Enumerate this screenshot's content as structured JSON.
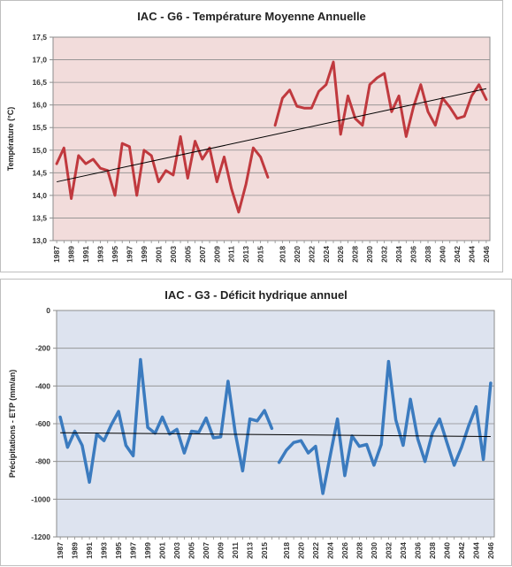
{
  "chart_data": [
    {
      "type": "line",
      "title": "IAC - G6 - Température Moyenne Annuelle",
      "xlabel": "",
      "ylabel": "Température (°C)",
      "ylim": [
        13.0,
        17.5
      ],
      "yticks": [
        "13,0",
        "13,5",
        "14,0",
        "14,5",
        "15,0",
        "15,5",
        "16,0",
        "16,5",
        "17,0",
        "17,5"
      ],
      "xticks": [
        "1987",
        "1989",
        "1991",
        "1993",
        "1995",
        "1997",
        "1999",
        "2001",
        "2003",
        "2005",
        "2007",
        "2009",
        "2011",
        "2013",
        "2015",
        "2018",
        "2020",
        "2022",
        "2024",
        "2026",
        "2028",
        "2030",
        "2032",
        "2034",
        "2036",
        "2038",
        "2040",
        "2042",
        "2044",
        "2046"
      ],
      "plot_background": "#f2dcdb",
      "grid": true,
      "legend": "none",
      "series": [
        {
          "color": "#c0393e",
          "x": [
            1987,
            1988,
            1989,
            1990,
            1991,
            1992,
            1993,
            1994,
            1995,
            1996,
            1997,
            1998,
            1999,
            2000,
            2001,
            2002,
            2003,
            2004,
            2005,
            2006,
            2007,
            2008,
            2009,
            2010,
            2011,
            2012,
            2013,
            2014,
            2015,
            2016
          ],
          "values": [
            14.7,
            15.05,
            13.93,
            14.88,
            14.7,
            14.8,
            14.6,
            14.55,
            14.0,
            15.15,
            15.08,
            14.0,
            15.0,
            14.88,
            14.3,
            14.55,
            14.45,
            15.3,
            14.38,
            15.2,
            14.8,
            15.05,
            14.3,
            14.85,
            14.15,
            13.63,
            14.25,
            15.05,
            14.85,
            14.4
          ]
        },
        {
          "color": "#c0393e",
          "x": [
            2017,
            2018,
            2019,
            2020,
            2021,
            2022,
            2023,
            2024,
            2025,
            2026,
            2027,
            2028,
            2029,
            2030,
            2031,
            2032,
            2033,
            2034,
            2035,
            2036,
            2037,
            2038,
            2039,
            2040,
            2041,
            2042,
            2043,
            2044,
            2045,
            2046
          ],
          "values": [
            15.55,
            16.15,
            16.33,
            15.97,
            15.93,
            15.93,
            16.3,
            16.45,
            16.95,
            15.35,
            16.2,
            15.7,
            15.55,
            16.45,
            16.6,
            16.7,
            15.85,
            16.2,
            15.3,
            15.95,
            16.45,
            15.85,
            15.55,
            16.15,
            15.95,
            15.7,
            15.75,
            16.2,
            16.45,
            16.12
          ]
        }
      ],
      "trendline": {
        "color": "#000000",
        "x": [
          1987,
          2046
        ],
        "values": [
          14.3,
          16.36
        ]
      }
    },
    {
      "type": "line",
      "title": "IAC - G3 - Déficit hydrique annuel",
      "xlabel": "",
      "ylabel": "Précipitations - ETP (mm/an)",
      "ylim": [
        -1200,
        0
      ],
      "yticks": [
        "-1200",
        "-1000",
        "-800",
        "-600",
        "-400",
        "-200",
        "0"
      ],
      "xticks": [
        "1987",
        "1989",
        "1991",
        "1993",
        "1995",
        "1997",
        "1999",
        "2001",
        "2003",
        "2005",
        "2007",
        "2009",
        "2011",
        "2013",
        "2015",
        "2018",
        "2020",
        "2022",
        "2024",
        "2026",
        "2028",
        "2030",
        "2032",
        "2034",
        "2036",
        "2038",
        "2040",
        "2042",
        "2044",
        "2046"
      ],
      "plot_background": "#dde3ef",
      "grid": true,
      "legend": "none",
      "series": [
        {
          "color": "#3b7bbf",
          "x": [
            1987,
            1988,
            1989,
            1990,
            1991,
            1992,
            1993,
            1994,
            1995,
            1996,
            1997,
            1998,
            1999,
            2000,
            2001,
            2002,
            2003,
            2004,
            2005,
            2006,
            2007,
            2008,
            2009,
            2010,
            2011,
            2012,
            2013,
            2014,
            2015,
            2016
          ],
          "values": [
            -565,
            -725,
            -640,
            -715,
            -910,
            -655,
            -690,
            -605,
            -535,
            -715,
            -770,
            -260,
            -620,
            -650,
            -565,
            -655,
            -630,
            -755,
            -640,
            -645,
            -570,
            -675,
            -670,
            -375,
            -650,
            -850,
            -575,
            -585,
            -530,
            -625
          ]
        },
        {
          "color": "#3b7bbf",
          "x": [
            2017,
            2018,
            2019,
            2020,
            2021,
            2022,
            2023,
            2024,
            2025,
            2026,
            2027,
            2028,
            2029,
            2030,
            2031,
            2032,
            2033,
            2034,
            2035,
            2036,
            2037,
            2038,
            2039,
            2040,
            2041,
            2042,
            2043,
            2044,
            2045,
            2046
          ],
          "values": [
            -805,
            -740,
            -700,
            -690,
            -755,
            -720,
            -970,
            -770,
            -575,
            -875,
            -665,
            -720,
            -710,
            -820,
            -710,
            -270,
            -580,
            -715,
            -470,
            -680,
            -800,
            -650,
            -575,
            -700,
            -820,
            -725,
            -610,
            -510,
            -790,
            -385
          ]
        }
      ],
      "trendline": {
        "color": "#000000",
        "x": [
          1987,
          2046
        ],
        "values": [
          -648,
          -668
        ]
      }
    }
  ]
}
